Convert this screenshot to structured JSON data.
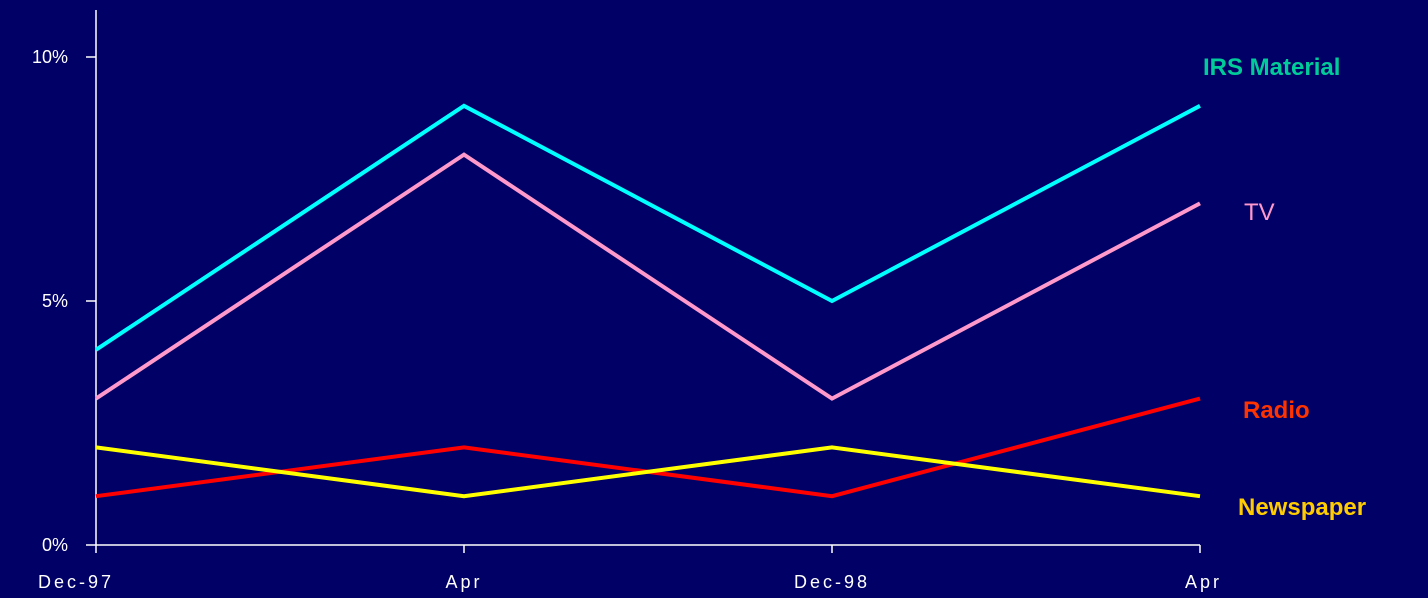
{
  "chart_data": {
    "type": "line",
    "categories": [
      "Dec-97",
      "Apr",
      "Dec-98",
      "Apr"
    ],
    "y_ticks": [
      {
        "value": 0,
        "label": "0%"
      },
      {
        "value": 5,
        "label": "5%"
      },
      {
        "value": 10,
        "label": "10%"
      }
    ],
    "ylim": [
      0,
      10
    ],
    "series": [
      {
        "name": "IRS Material",
        "values": [
          4,
          9,
          5,
          9
        ],
        "color": "#00ffff",
        "label_color": "#00cc99",
        "label_bold": true
      },
      {
        "name": "TV",
        "values": [
          3,
          8,
          3,
          7
        ],
        "color": "#ff99cc",
        "label_color": "#ff99cc",
        "label_bold": false
      },
      {
        "name": "Radio",
        "values": [
          1,
          2,
          1,
          3
        ],
        "color": "#ff0000",
        "label_color": "#ff3300",
        "label_bold": true
      },
      {
        "name": "Newspaper",
        "values": [
          2,
          1,
          2,
          1
        ],
        "color": "#ffff00",
        "label_color": "#ffcc00",
        "label_bold": true
      }
    ],
    "grid": false,
    "legend": "right",
    "background": "#000066"
  }
}
